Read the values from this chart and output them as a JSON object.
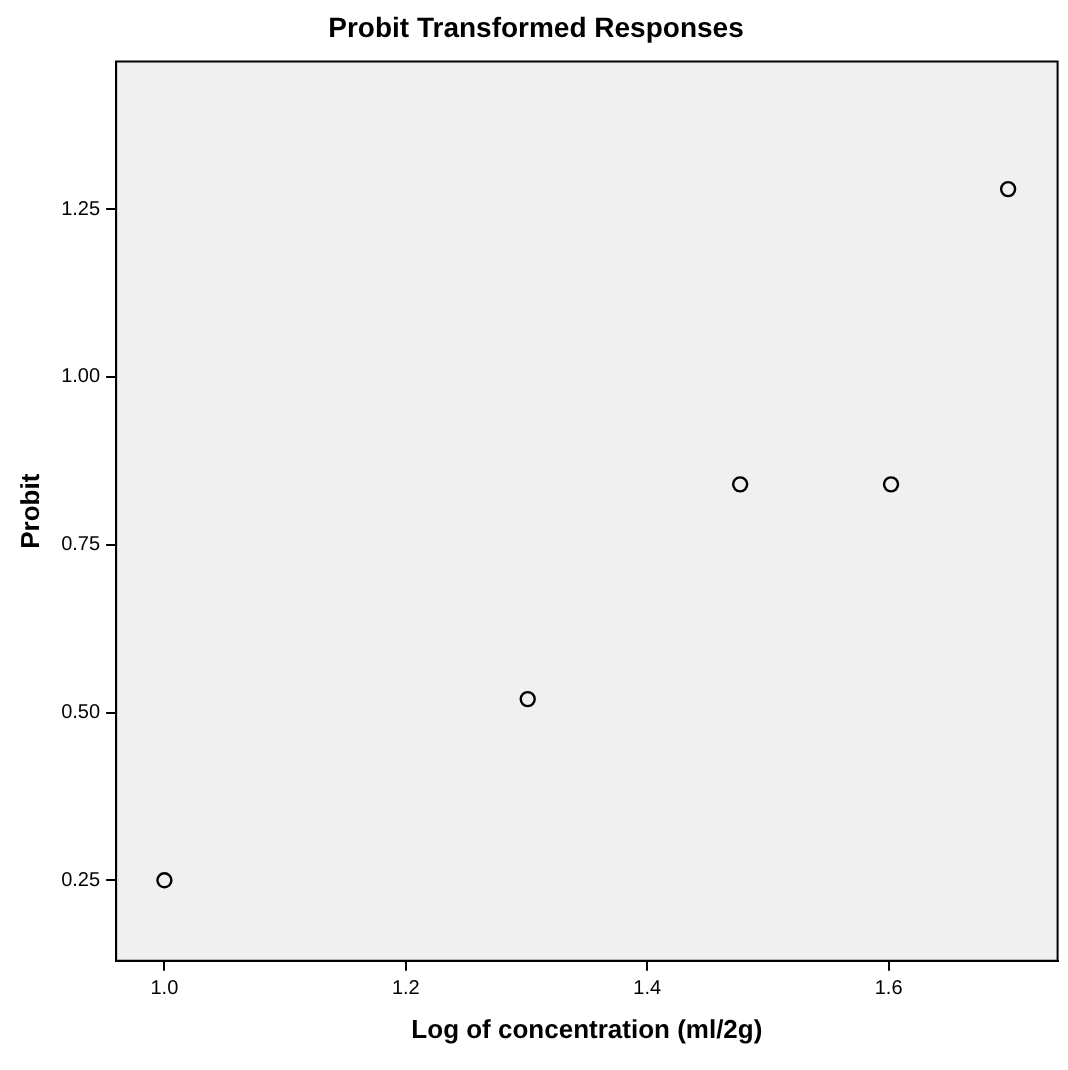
{
  "chart_data": {
    "type": "scatter",
    "title": "Probit Transformed Responses",
    "xlabel": "Log of concentration (ml/2g)",
    "ylabel": "Probit",
    "x": [
      1.0,
      1.301,
      1.477,
      1.602,
      1.699
    ],
    "series": [
      {
        "color": "#000000",
        "values": [
          0.25,
          0.52,
          0.84,
          0.84,
          1.28
        ]
      }
    ],
    "xlim": [
      0.96,
      1.74
    ],
    "xticks": [
      {
        "value": 1.0,
        "label": "1.0"
      },
      {
        "value": 1.2,
        "label": "1.2"
      },
      {
        "value": 1.4,
        "label": "1.4"
      },
      {
        "value": 1.6,
        "label": "1.6"
      }
    ],
    "ylim": [
      0.13,
      1.47
    ],
    "yticks": [
      {
        "value": 0.25,
        "label": "0.25"
      },
      {
        "value": 0.5,
        "label": "0.50"
      },
      {
        "value": 0.75,
        "label": "0.75"
      },
      {
        "value": 1.0,
        "label": "1.00"
      },
      {
        "value": 1.25,
        "label": "1.25"
      }
    ],
    "grid": false,
    "legend": false,
    "marker": "circle"
  }
}
